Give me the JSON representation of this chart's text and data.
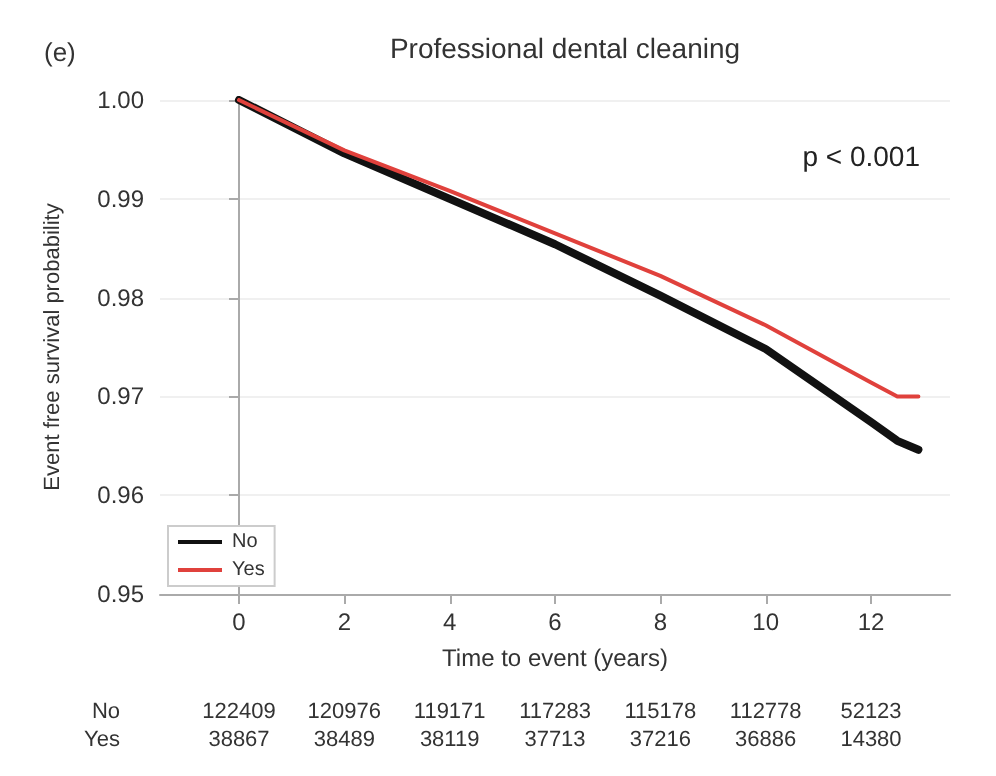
{
  "chart_data": {
    "type": "line",
    "title": "Professional dental cleaning",
    "xlabel": "Time to event (years)",
    "ylabel": "Event free survival probability",
    "x": [
      0,
      2,
      4,
      6,
      8,
      10,
      12,
      12.5,
      12.9
    ],
    "series": [
      {
        "name": "No",
        "color": "#111111",
        "values": [
          1.0,
          0.9946,
          0.99,
          0.9854,
          0.9802,
          0.9748,
          0.9674,
          0.9655,
          0.9646
        ]
      },
      {
        "name": "Yes",
        "color": "#e0413c",
        "values": [
          1.0,
          0.9949,
          0.9908,
          0.9865,
          0.9822,
          0.9772,
          0.9714,
          0.97,
          0.97
        ]
      }
    ],
    "xlim": [
      -1.5,
      13.5
    ],
    "xticks": [
      0,
      2,
      4,
      6,
      8,
      10,
      12
    ],
    "ylim": [
      0.95,
      1.0
    ],
    "yticks": [
      0.95,
      0.96,
      0.97,
      0.98,
      0.99,
      {
        "value": 1.0,
        "label": "1.00"
      }
    ],
    "grid": "y",
    "legend": "bottom left",
    "marker": "none",
    "line_style": "solid",
    "annotations": [
      "(e)",
      "p < 0.001",
      "No",
      "122409",
      "120976",
      "119171",
      "117283",
      "115178",
      "112778",
      "52123",
      "Yes",
      "38867",
      "38489",
      "38119",
      "37713",
      "37216",
      "36886",
      "14380"
    ]
  }
}
